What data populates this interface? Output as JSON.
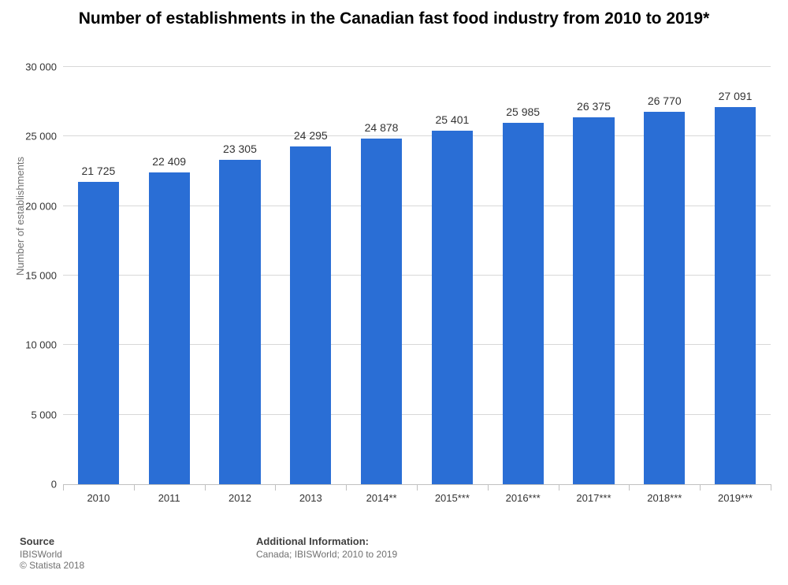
{
  "chart": {
    "type": "bar",
    "title": "Number of establishments in the Canadian fast food industry from 2010 to 2019*",
    "title_fontsize": 21,
    "title_color": "#000000",
    "background_color": "#ffffff",
    "grid_color": "#d8d8d8",
    "axis_text_color": "#333333",
    "bar_color": "#2a6ed5",
    "bar_width_ratio": 0.58,
    "y_axis": {
      "title": "Number of establishments",
      "title_fontsize": 13,
      "title_color": "#707070",
      "min": 0,
      "max": 30000,
      "tick_step": 5000,
      "tick_labels": [
        "0",
        "5 000",
        "10 000",
        "15 000",
        "20 000",
        "25 000",
        "30 000"
      ]
    },
    "x_axis": {
      "categories": [
        "2010",
        "2011",
        "2012",
        "2013",
        "2014**",
        "2015***",
        "2016***",
        "2017***",
        "2018***",
        "2019***"
      ],
      "label_fontsize": 13
    },
    "values": [
      21725,
      22409,
      23305,
      24295,
      24878,
      25401,
      25985,
      26375,
      26770,
      27091
    ],
    "value_labels": [
      "21 725",
      "22 409",
      "23 305",
      "24 295",
      "24 878",
      "25 401",
      "25 985",
      "26 375",
      "26 770",
      "27 091"
    ],
    "value_label_fontsize": 14
  },
  "footer": {
    "source_heading": "Source",
    "source_text": "IBISWorld",
    "copyright": "© Statista 2018",
    "info_heading": "Additional Information:",
    "info_text": "Canada; IBISWorld; 2010 to 2019"
  }
}
